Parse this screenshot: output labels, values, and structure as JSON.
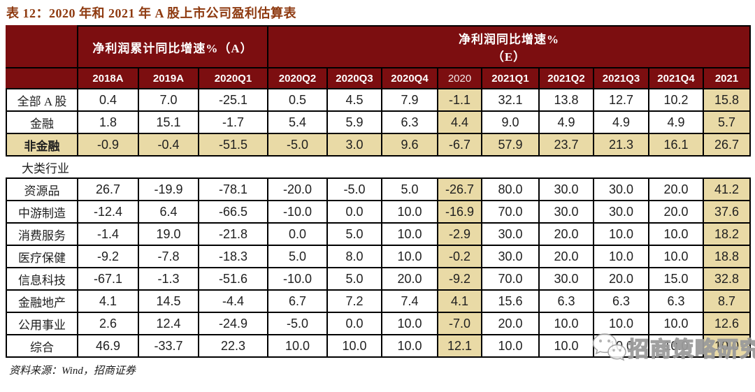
{
  "title": "表 12：2020 年和 2021 年 A 股上市公司盈利估算表",
  "colors": {
    "header_bg": "#7c0e10",
    "highlight": "#e9daa6",
    "title_color": "#8e3a10",
    "border_color": "#000000",
    "text_color": "#1f1f1f"
  },
  "table": {
    "group_headers": {
      "a_label": "净利润累计同比增速%（A）",
      "e_line1": "净利润同比增速%",
      "e_line2": "（E）"
    },
    "columns": [
      {
        "label": "2018A"
      },
      {
        "label": "2019A"
      },
      {
        "label": "2020Q1"
      },
      {
        "label": "2020Q2"
      },
      {
        "label": "2020Q3"
      },
      {
        "label": "2020Q4"
      },
      {
        "label": "2020",
        "light": true
      },
      {
        "label": "2021Q1"
      },
      {
        "label": "2021Q2"
      },
      {
        "label": "2021Q3"
      },
      {
        "label": "2021Q4"
      },
      {
        "label": "2021"
      }
    ],
    "highlight_column_indexes": [
      6,
      11
    ],
    "rows": [
      {
        "label": "全部 A 股",
        "values": [
          "0.4",
          "7.0",
          "-25.1",
          "0.5",
          "4.5",
          "7.9",
          "-1.1",
          "32.1",
          "13.8",
          "12.7",
          "10.2",
          "15.8"
        ]
      },
      {
        "label": "金融",
        "values": [
          "1.8",
          "15.1",
          "-1.7",
          "5.4",
          "5.9",
          "6.3",
          "4.4",
          "9.0",
          "4.9",
          "4.9",
          "4.9",
          "5.7"
        ]
      },
      {
        "label": "非金融",
        "emphasis": true,
        "values": [
          "-0.9",
          "-0.4",
          "-51.5",
          "-5.0",
          "3.0",
          "9.6",
          "-6.7",
          "57.9",
          "23.7",
          "21.3",
          "16.1",
          "26.7"
        ]
      },
      {
        "section": "大类行业"
      },
      {
        "label": "资源品",
        "values": [
          "26.7",
          "-19.9",
          "-78.1",
          "-20.0",
          "-5.0",
          "5.0",
          "-26.7",
          "80.0",
          "30.0",
          "30.0",
          "20.0",
          "41.2"
        ]
      },
      {
        "label": "中游制造",
        "values": [
          "-12.4",
          "6.4",
          "-66.5",
          "-10.0",
          "0.0",
          "10.0",
          "-16.9",
          "70.0",
          "30.0",
          "30.0",
          "20.0",
          "37.6"
        ]
      },
      {
        "label": "消费服务",
        "values": [
          "-1.4",
          "19.0",
          "-21.8",
          "0.0",
          "5.0",
          "10.0",
          "-2.9",
          "30.0",
          "20.0",
          "10.0",
          "10.0",
          "18.2"
        ]
      },
      {
        "label": "医疗保健",
        "values": [
          "-9.2",
          "-7.8",
          "-18.3",
          "5.0",
          "8.0",
          "10.0",
          "-0.2",
          "30.0",
          "20.0",
          "10.0",
          "10.0",
          "18.8"
        ]
      },
      {
        "label": "信息科技",
        "values": [
          "-67.1",
          "-1.3",
          "-51.6",
          "-10.0",
          "5.0",
          "20.0",
          "-9.2",
          "70.0",
          "30.0",
          "20.0",
          "15.0",
          "32.8"
        ]
      },
      {
        "label": "金融地产",
        "values": [
          "4.1",
          "14.5",
          "-4.4",
          "6.7",
          "7.2",
          "7.4",
          "4.1",
          "15.6",
          "6.3",
          "6.3",
          "6.3",
          "8.7"
        ]
      },
      {
        "label": "公用事业",
        "values": [
          "2.6",
          "12.4",
          "-24.9",
          "-5.0",
          "0.0",
          "10.0",
          "-7.0",
          "20.0",
          "10.0",
          "10.0",
          "10.0",
          "12.6"
        ]
      },
      {
        "label": "综合",
        "values": [
          "46.9",
          "-33.7",
          "22.3",
          "10.0",
          "10.0",
          "10.0",
          "12.1",
          "10.0",
          "10.0",
          "10.0",
          "10.0",
          "10.0"
        ]
      }
    ]
  },
  "source": "资料来源：Wind，招商证券",
  "watermark": {
    "text": "招商策略研究",
    "logo_icon": "wechat-icon"
  }
}
